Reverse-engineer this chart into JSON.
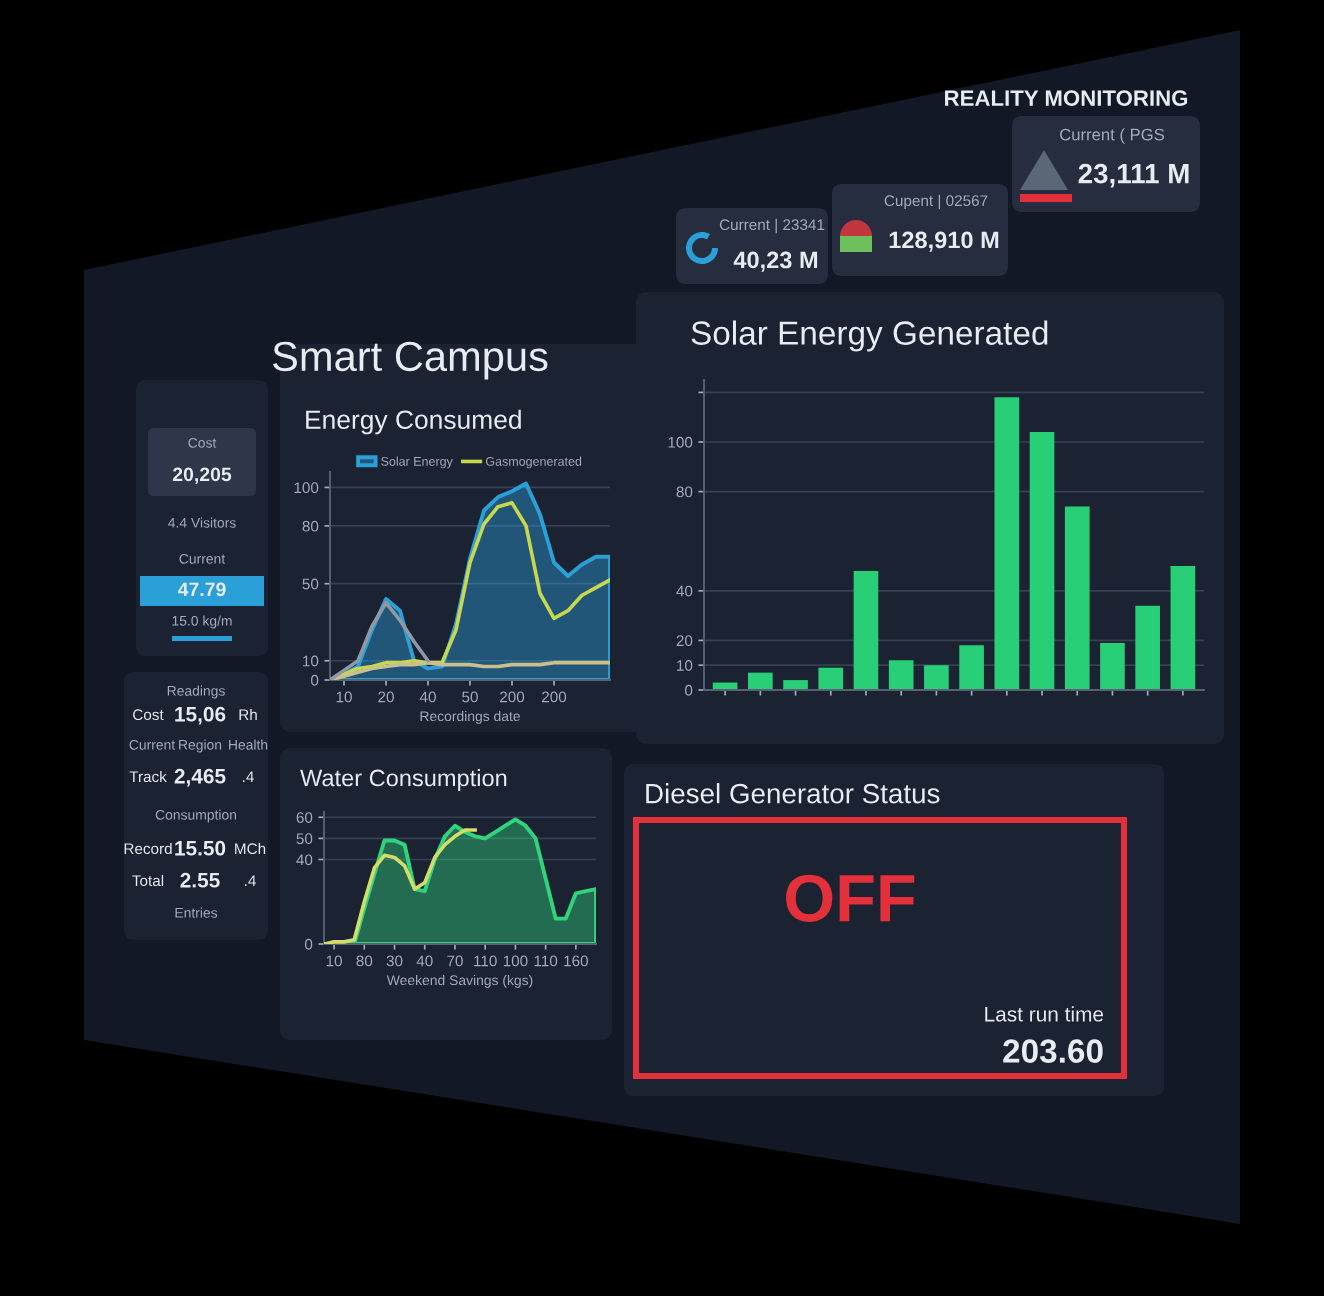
{
  "chart_data": [
    {
      "type": "other",
      "title": "REALITY MONITORING",
      "annotations": [
        "Current | 23341",
        "40,23 M",
        "Cupent | 02567",
        "128,910 M",
        "Current ( PGS",
        "23,111 M"
      ]
    },
    {
      "type": "other",
      "title": "Smart Campus",
      "annotations": [
        "Cost",
        "20,205",
        "4.4 Visitors",
        "Current",
        "47.79",
        "15.0 kg/m",
        "Readings",
        "Cost",
        "15,06",
        "Rh",
        "Current",
        "Region",
        "Health",
        "Track",
        "2,465",
        ".4",
        "Consumption",
        "Record",
        "15.50",
        "MCh",
        "Total",
        "2.55",
        ".4",
        "Entries"
      ]
    },
    {
      "type": "line",
      "title": "Energy Consumed",
      "xlabel": "Recordings date",
      "categories": [
        null,
        "10",
        null,
        null,
        "20",
        null,
        null,
        "40",
        null,
        null,
        "50",
        null,
        null,
        "200",
        null,
        null,
        "200",
        null,
        null,
        null,
        null
      ],
      "series": [
        {
          "name": "Solar Energy",
          "type": "area",
          "color": "#2a9fd8",
          "values": [
            0,
            3,
            7,
            26,
            42,
            36,
            10,
            6,
            7,
            29,
            63,
            88,
            95,
            98,
            102,
            86,
            61,
            54,
            60,
            64,
            64
          ]
        },
        {
          "name": "Gasmogenerated",
          "color": "#c8d84e",
          "values": [
            0,
            3,
            6,
            7,
            9,
            9,
            10,
            9,
            9,
            26,
            61,
            81,
            90,
            92,
            80,
            45,
            32,
            36,
            44,
            48,
            52
          ]
        },
        {
          "color": "#cbbf8e",
          "values": [
            0,
            2,
            4,
            6,
            7,
            8,
            8,
            9,
            8,
            8,
            8,
            7,
            7,
            8,
            8,
            8,
            9,
            9,
            9,
            9,
            9
          ]
        },
        {
          "color": "#8f99a6",
          "values": [
            0,
            5,
            10,
            28,
            40,
            31,
            20,
            10,
            null,
            null,
            null,
            null,
            null,
            null,
            null,
            null,
            null,
            null,
            null,
            null,
            null
          ]
        }
      ],
      "ylim": [
        0,
        108
      ],
      "yticks": [
        0,
        10,
        50,
        80,
        100
      ],
      "grid": "y",
      "legend": "top"
    },
    {
      "type": "bar",
      "title": "Solar Energy Generated",
      "categories": [
        null,
        null,
        null,
        null,
        null,
        null,
        null,
        null,
        null,
        null,
        null,
        null,
        null,
        null
      ],
      "values": [
        3,
        7,
        4,
        9,
        48,
        12,
        10,
        18,
        118,
        104,
        74,
        19,
        34,
        50
      ],
      "color": "#28cf76",
      "ylim": [
        0,
        125
      ],
      "yticks": [
        0,
        10,
        20,
        40,
        80,
        100,
        {
          "value": 120,
          "label": null
        }
      ],
      "grid": "y",
      "tick_labels": "y"
    },
    {
      "type": "line",
      "title": "Water Consumption",
      "xlabel": "Weekend Savings (kgs)",
      "categories": [
        null,
        "10",
        null,
        null,
        "80",
        null,
        null,
        "30",
        null,
        null,
        "40",
        null,
        null,
        "70",
        null,
        null,
        "110",
        null,
        null,
        "100",
        null,
        null,
        "110",
        null,
        null,
        "160",
        null,
        null
      ],
      "series": [
        {
          "type": "area",
          "color": "#2fd47c",
          "values": [
            0,
            0,
            0,
            0,
            17,
            33,
            49,
            49,
            47,
            26,
            25,
            40,
            51,
            56,
            53,
            51,
            50,
            53,
            56,
            59,
            56,
            50,
            31,
            12,
            12,
            24,
            25,
            26
          ]
        },
        {
          "color": "#d4dc6a",
          "values": [
            0,
            1,
            1,
            2,
            20,
            36,
            42,
            41,
            37,
            26,
            29,
            41,
            47,
            51,
            54,
            54,
            null,
            null,
            null,
            null,
            null,
            null,
            null,
            null,
            null,
            null,
            null,
            null
          ]
        }
      ],
      "ylim": [
        0,
        62.5
      ],
      "yticks": [
        0,
        40,
        50,
        60
      ],
      "grid": "y"
    },
    {
      "type": "other",
      "title": "Diesel Generator Status",
      "annotations": [
        "OFF",
        "Last run time",
        "203.60"
      ]
    }
  ]
}
